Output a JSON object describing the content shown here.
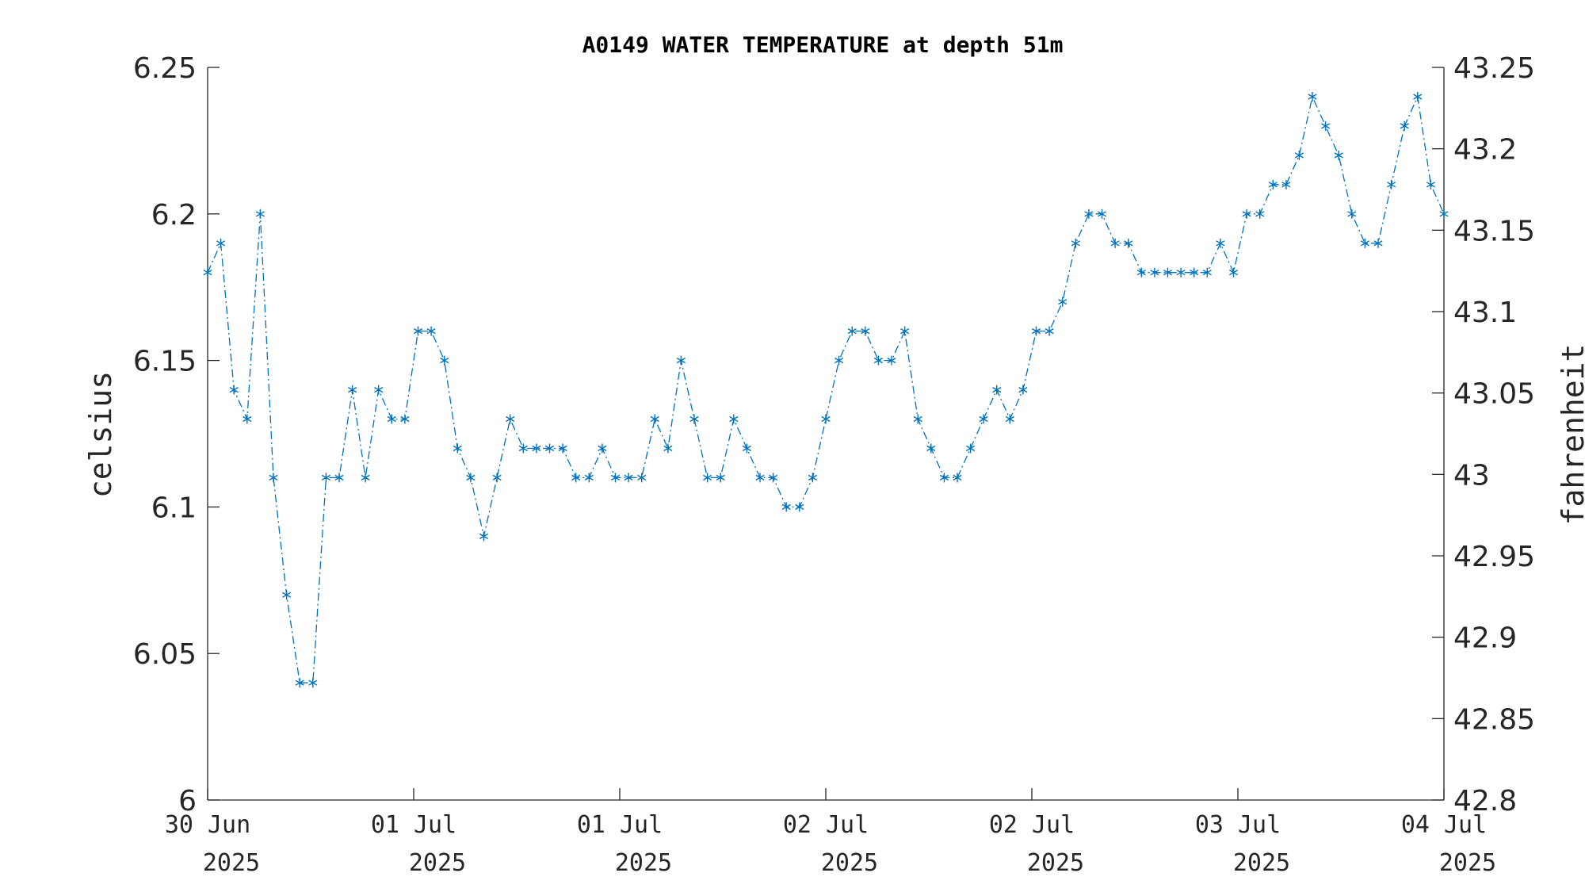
{
  "chart_data": {
    "type": "line",
    "title": "A0149 WATER TEMPERATURE at depth 51m",
    "ylabel": "celsius",
    "ylabel_right": "fahrenheit",
    "ylim": [
      6,
      6.25
    ],
    "ylim_right": [
      42.8,
      43.25
    ],
    "yticks": [
      "6",
      "6.05",
      "6.1",
      "6.15",
      "6.2",
      "6.25"
    ],
    "yticks_right": [
      "42.8",
      "42.85",
      "42.9",
      "42.95",
      "43",
      "43.05",
      "43.1",
      "43.15",
      "43.2",
      "43.25"
    ],
    "xticks": [
      {
        "day": "30 Jun",
        "year": "2025"
      },
      {
        "day": "01 Jul",
        "year": "2025"
      },
      {
        "day": "01 Jul",
        "year": "2025"
      },
      {
        "day": "02 Jul",
        "year": "2025"
      },
      {
        "day": "02 Jul",
        "year": "2025"
      },
      {
        "day": "03 Jul",
        "year": "2025"
      },
      {
        "day": "04 Jul",
        "year": "2025"
      }
    ],
    "grid": false,
    "series": [
      {
        "color": "#0072BD",
        "line_style": "dash-dot",
        "marker": "asterisk",
        "values": [
          6.18,
          6.19,
          6.14,
          6.13,
          6.2,
          6.11,
          6.07,
          6.04,
          6.04,
          6.11,
          6.11,
          6.14,
          6.11,
          6.14,
          6.13,
          6.13,
          6.16,
          6.16,
          6.15,
          6.12,
          6.11,
          6.09,
          6.11,
          6.13,
          6.12,
          6.12,
          6.12,
          6.12,
          6.11,
          6.11,
          6.12,
          6.11,
          6.11,
          6.11,
          6.13,
          6.12,
          6.15,
          6.13,
          6.11,
          6.11,
          6.13,
          6.12,
          6.11,
          6.11,
          6.1,
          6.1,
          6.11,
          6.13,
          6.15,
          6.16,
          6.16,
          6.15,
          6.15,
          6.16,
          6.13,
          6.12,
          6.11,
          6.11,
          6.12,
          6.13,
          6.14,
          6.13,
          6.14,
          6.16,
          6.16,
          6.17,
          6.19,
          6.2,
          6.2,
          6.19,
          6.19,
          6.18,
          6.18,
          6.18,
          6.18,
          6.18,
          6.18,
          6.19,
          6.18,
          6.2,
          6.2,
          6.21,
          6.21,
          6.22,
          6.24,
          6.23,
          6.22,
          6.2,
          6.19,
          6.19,
          6.21,
          6.23,
          6.24,
          6.21,
          6.2
        ]
      }
    ]
  }
}
